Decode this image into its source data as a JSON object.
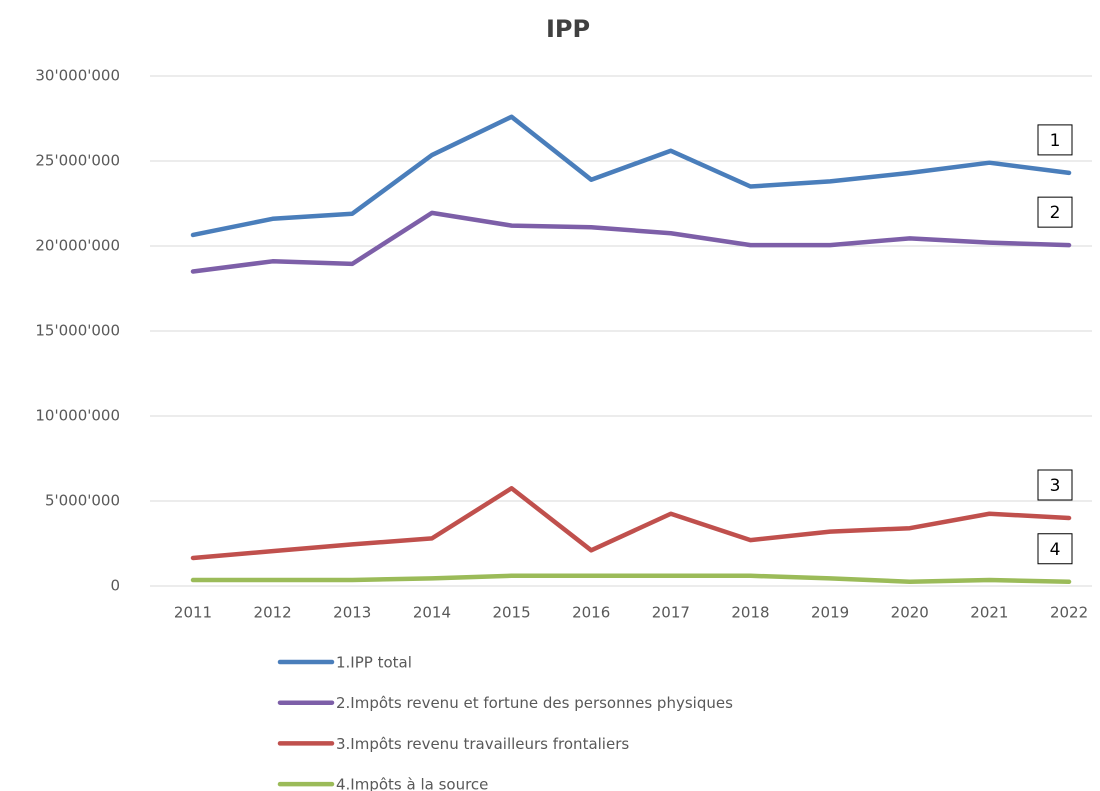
{
  "chart_data": {
    "type": "line",
    "title": "IPP",
    "categories": [
      "2011",
      "2012",
      "2013",
      "2014",
      "2015",
      "2016",
      "2017",
      "2018",
      "2019",
      "2020",
      "2021",
      "2022"
    ],
    "series": [
      {
        "name": "1.IPP total",
        "color": "#4a7ebb",
        "values": [
          20650000,
          21600000,
          21900000,
          25350000,
          27600000,
          23900000,
          25600000,
          23500000,
          23800000,
          24300000,
          24900000,
          24300000
        ]
      },
      {
        "name": "2.Impôts revenu et fortune des personnes physiques",
        "color": "#7d5fa8",
        "values": [
          18500000,
          19100000,
          18950000,
          21950000,
          21200000,
          21100000,
          20750000,
          20050000,
          20050000,
          20450000,
          20200000,
          20050000
        ]
      },
      {
        "name": "3.Impôts revenu travailleurs frontaliers",
        "color": "#c0504d",
        "values": [
          1650000,
          2050000,
          2450000,
          2800000,
          5750000,
          2100000,
          4250000,
          2700000,
          3200000,
          3400000,
          4250000,
          4000000
        ]
      },
      {
        "name": "4.Impôts à la source",
        "color": "#9bbb59",
        "values": [
          350000,
          350000,
          350000,
          450000,
          600000,
          600000,
          600000,
          600000,
          450000,
          250000,
          350000,
          250000
        ]
      }
    ],
    "annotations": [
      "1",
      "2",
      "3",
      "4"
    ],
    "ylim": [
      0,
      30000000
    ],
    "yticks": [
      0,
      {
        "value": 5000000,
        "label": "5'000'000"
      },
      {
        "value": 10000000,
        "label": "10'000'000"
      },
      {
        "value": 15000000,
        "label": "15'000'000"
      },
      {
        "value": 20000000,
        "label": "20'000'000"
      },
      {
        "value": 25000000,
        "label": "25'000'000"
      },
      {
        "value": 30000000,
        "label": "30'000'000"
      }
    ],
    "grid": true
  }
}
